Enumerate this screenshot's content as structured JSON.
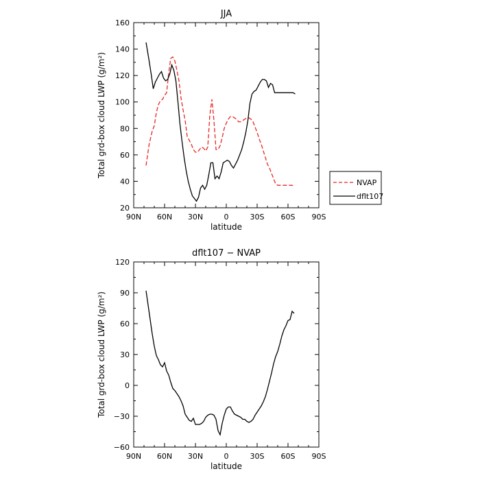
{
  "chart_data": [
    {
      "type": "line",
      "title": "JJA",
      "xlabel": "latitude",
      "ylabel": "Total grd-box cloud LWP (g/m²)",
      "xlim": [
        90,
        -90
      ],
      "ylim": [
        20,
        160
      ],
      "x_ticks": [
        90,
        60,
        30,
        0,
        -30,
        -60,
        -90
      ],
      "x_tick_labels": [
        "90N",
        "60N",
        "30N",
        "0",
        "30S",
        "60S",
        "90S"
      ],
      "y_ticks": [
        20,
        40,
        60,
        80,
        100,
        120,
        140,
        160
      ],
      "y_tick_labels": [
        "20",
        "40",
        "60",
        "80",
        "100",
        "120",
        "140",
        "160"
      ],
      "legend_position": "outside-right",
      "series": [
        {
          "name": "NVAP",
          "color": "#e8231f",
          "dash": true,
          "x": [
            78,
            75,
            72,
            70,
            68,
            66,
            64,
            62,
            60,
            58,
            56,
            54,
            52,
            50,
            48,
            46,
            44,
            42,
            40,
            38,
            36,
            34,
            32,
            30,
            28,
            26,
            24,
            22,
            20,
            18,
            16,
            14,
            12,
            10,
            8,
            6,
            4,
            2,
            0,
            -2,
            -4,
            -6,
            -8,
            -10,
            -12,
            -14,
            -16,
            -18,
            -20,
            -22,
            -24,
            -26,
            -28,
            -30,
            -32,
            -34,
            -36,
            -38,
            -40,
            -42,
            -44,
            -46,
            -48,
            -50,
            -52,
            -54,
            -56,
            -58,
            -60,
            -62,
            -64,
            -66
          ],
          "y": [
            52,
            68,
            78,
            82,
            92,
            98,
            101,
            102,
            105,
            107,
            122,
            133,
            134,
            131,
            124,
            116,
            103,
            94,
            86,
            74,
            71,
            68,
            64,
            62,
            62,
            64,
            66,
            65,
            63,
            66,
            90,
            102,
            86,
            64,
            64,
            67,
            73,
            80,
            84,
            87,
            89,
            89,
            88,
            87,
            85,
            85,
            86,
            87,
            88,
            88,
            87,
            85,
            81,
            77,
            72,
            68,
            63,
            58,
            53,
            50,
            46,
            42,
            38,
            37,
            37,
            37,
            37,
            37,
            37,
            37,
            37,
            36
          ],
          "x_clip": [
            78,
            -66
          ]
        },
        {
          "name": "dflt107",
          "color": "#000000",
          "dash": false,
          "x": [
            78,
            75,
            73,
            71,
            69,
            67,
            65,
            63,
            61,
            59,
            57,
            55,
            53,
            51,
            49,
            47,
            45,
            43,
            41,
            39,
            37,
            35,
            33,
            31,
            29,
            27,
            25,
            23,
            21,
            19,
            17,
            15,
            13,
            11,
            9,
            7,
            5,
            3,
            1,
            -1,
            -3,
            -5,
            -7,
            -9,
            -11,
            -13,
            -15,
            -17,
            -19,
            -21,
            -23,
            -25,
            -27,
            -29,
            -31,
            -33,
            -35,
            -37,
            -39,
            -41,
            -43,
            -45,
            -47,
            -49,
            -51,
            -53,
            -55,
            -57,
            -59,
            -61,
            -63,
            -65,
            -67
          ],
          "y": [
            145,
            131,
            121,
            110,
            115,
            118,
            121,
            123,
            118,
            116,
            117,
            121,
            128,
            124,
            116,
            100,
            83,
            70,
            58,
            48,
            40,
            34,
            29,
            27,
            25,
            28,
            35,
            37,
            34,
            37,
            45,
            54,
            54,
            42,
            44,
            42,
            47,
            54,
            55,
            56,
            55,
            52,
            50,
            53,
            56,
            60,
            64,
            70,
            77,
            86,
            99,
            106,
            108,
            109,
            112,
            115,
            117,
            117,
            116,
            111,
            114,
            113,
            107,
            107,
            107,
            107,
            107,
            107,
            107,
            107,
            107,
            107,
            106
          ]
        }
      ]
    },
    {
      "type": "line",
      "title": "dflt107 − NVAP",
      "xlabel": "latitude",
      "ylabel": "Total grd-box cloud LWP (g/m²)",
      "xlim": [
        90,
        -90
      ],
      "ylim": [
        -60,
        120
      ],
      "x_ticks": [
        90,
        60,
        30,
        0,
        -30,
        -60,
        -90
      ],
      "x_tick_labels": [
        "90N",
        "60N",
        "30N",
        "0",
        "30S",
        "60S",
        "90S"
      ],
      "y_ticks": [
        -60,
        -30,
        0,
        30,
        60,
        90,
        120
      ],
      "y_tick_labels": [
        "−60",
        "−30",
        "0",
        "30",
        "60",
        "90",
        "120"
      ],
      "series": [
        {
          "color": "#000000",
          "dash": false,
          "x": [
            78,
            76,
            74,
            72,
            70,
            68,
            66,
            64,
            62,
            60,
            58,
            56,
            54,
            52,
            50,
            48,
            46,
            44,
            42,
            40,
            38,
            36,
            34,
            32,
            30,
            28,
            26,
            24,
            22,
            20,
            18,
            16,
            14,
            12,
            10,
            8,
            6,
            4,
            2,
            0,
            -2,
            -4,
            -6,
            -8,
            -10,
            -12,
            -14,
            -16,
            -18,
            -20,
            -22,
            -24,
            -26,
            -28,
            -30,
            -32,
            -34,
            -36,
            -38,
            -40,
            -42,
            -44,
            -46,
            -48,
            -50,
            -52,
            -54,
            -56,
            -58,
            -60,
            -62,
            -64,
            -66
          ],
          "y": [
            92,
            78,
            64,
            50,
            38,
            29,
            25,
            20,
            18,
            22,
            14,
            10,
            3,
            -3,
            -5,
            -8,
            -11,
            -15,
            -20,
            -28,
            -31,
            -34,
            -35,
            -32,
            -38,
            -38,
            -38,
            -37,
            -35,
            -31,
            -29,
            -28,
            -28,
            -29,
            -33,
            -44,
            -48,
            -37,
            -29,
            -23,
            -21,
            -21,
            -25,
            -28,
            -29,
            -30,
            -31,
            -33,
            -33,
            -35,
            -36,
            -35,
            -33,
            -29,
            -26,
            -23,
            -20,
            -16,
            -11,
            -4,
            4,
            12,
            21,
            28,
            33,
            40,
            48,
            54,
            58,
            63,
            64,
            72,
            70
          ]
        }
      ]
    }
  ]
}
